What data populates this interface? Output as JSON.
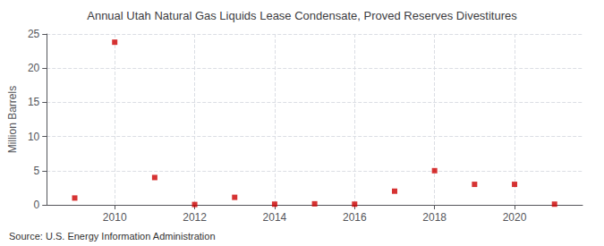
{
  "chart_data": {
    "type": "scatter",
    "title": "Annual Utah Natural Gas Liquids Lease Condensate, Proved Reserves Divestitures",
    "ylabel": "Million Barrels",
    "source": "Source: U.S. Energy Information Administration",
    "x": [
      2009,
      2010,
      2011,
      2012,
      2013,
      2014,
      2015,
      2016,
      2017,
      2018,
      2019,
      2020,
      2021
    ],
    "values": [
      1.0,
      23.8,
      4.0,
      0.05,
      1.1,
      0.1,
      0.15,
      0.1,
      2.0,
      5.0,
      3.0,
      3.0,
      0.1
    ],
    "color": "#cc0000",
    "marker": "square",
    "xlim": [
      2008.3,
      2021.7
    ],
    "xticks": [
      2010,
      2012,
      2014,
      2016,
      2018,
      2020
    ],
    "ylim": [
      0,
      25
    ],
    "yticks": [
      0,
      5,
      10,
      15,
      20,
      25
    ],
    "grid": true
  }
}
